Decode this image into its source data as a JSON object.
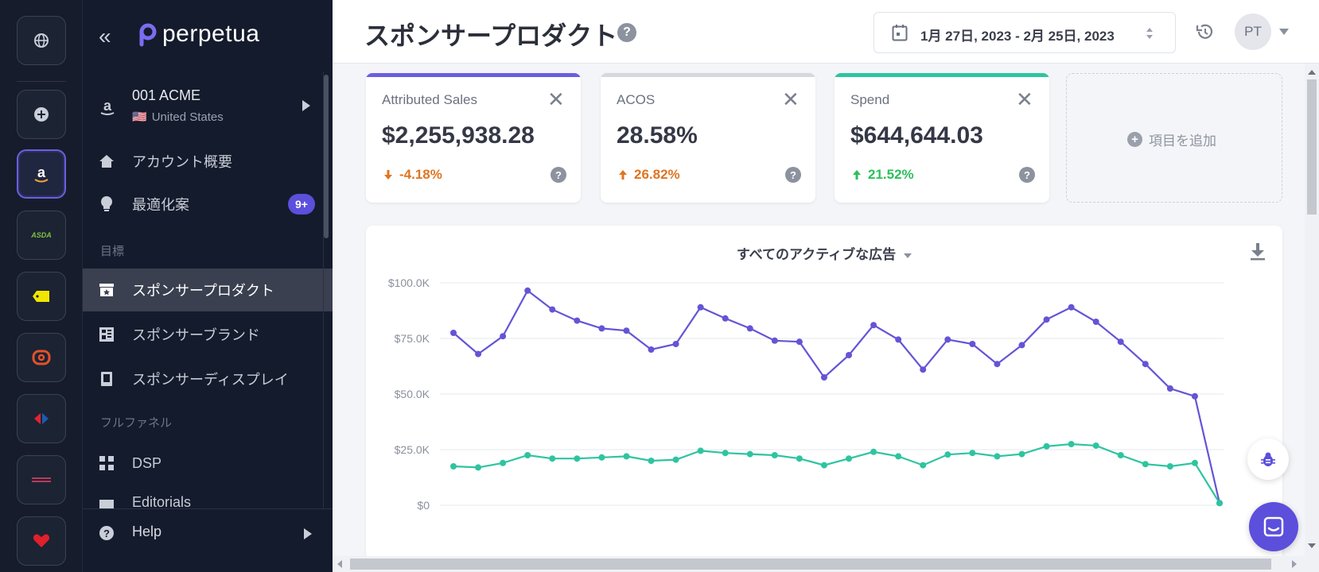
{
  "rail": {
    "items": [
      {
        "name": "globe-icon"
      },
      {
        "name": "add-icon"
      },
      {
        "name": "amazon-icon",
        "active": true
      },
      {
        "name": "asda-logo",
        "text": "ASDA"
      },
      {
        "name": "tag-icon"
      },
      {
        "name": "bol-logo"
      },
      {
        "name": "carrefour-logo"
      },
      {
        "name": "retailer-logo"
      },
      {
        "name": "heart-icon"
      }
    ]
  },
  "sidebar": {
    "logo_text": "perpetua",
    "account": {
      "name": "001 ACME",
      "flag": "🇺🇸",
      "country": "United States"
    },
    "items": [
      {
        "label": "アカウント概要"
      },
      {
        "label": "最適化案",
        "badge": "9+"
      }
    ],
    "section_goals": "目標",
    "goal_items": [
      {
        "label": "スポンサープロダクト",
        "active": true
      },
      {
        "label": "スポンサーブランド"
      },
      {
        "label": "スポンサーディスプレイ"
      }
    ],
    "section_fullfunnel": "フルファネル",
    "funnel_items": [
      {
        "label": "DSP"
      },
      {
        "label": "Editorials"
      }
    ],
    "help": "Help"
  },
  "header": {
    "title": "スポンサープロダクト",
    "help": "?",
    "date_range": "1月 27日, 2023 - 2月 25日, 2023",
    "avatar": "PT"
  },
  "metrics": [
    {
      "label": "Attributed Sales",
      "value": "$2,255,938.28",
      "change": "-4.18%",
      "direction": "down",
      "color": "#6b5fe0",
      "change_color": "#e0741f"
    },
    {
      "label": "ACOS",
      "value": "28.58%",
      "change": "26.82%",
      "direction": "up",
      "color": "#d5d8de",
      "change_color": "#e0741f"
    },
    {
      "label": "Spend",
      "value": "$644,644.03",
      "change": "21.52%",
      "direction": "up",
      "color": "#2ec4a0",
      "change_color": "#2bbf5c"
    }
  ],
  "add_metric": "項目を追加",
  "chart": {
    "title": "すべてのアクティブな広告"
  },
  "chart_data": {
    "type": "line",
    "ylim": [
      0,
      100000
    ],
    "yticks": [
      "$0",
      "$25.0K",
      "$50.0K",
      "$75.0K",
      "$100.0K"
    ],
    "series": [
      {
        "color": "#6454d6",
        "values": [
          77500,
          68000,
          76000,
          96500,
          88000,
          83000,
          79500,
          78500,
          70000,
          72500,
          89000,
          84000,
          79500,
          74000,
          73500,
          57500,
          67500,
          81000,
          74500,
          61000,
          74500,
          72500,
          63500,
          72000,
          83500,
          89000,
          82500,
          73500,
          63500,
          52500,
          49000,
          1000
        ]
      },
      {
        "color": "#2ec4a0",
        "values": [
          17500,
          17000,
          19000,
          22500,
          21000,
          21000,
          21500,
          22000,
          20000,
          20500,
          24500,
          23500,
          23000,
          22500,
          21000,
          18000,
          21000,
          24000,
          22000,
          18000,
          22800,
          23500,
          22000,
          23000,
          26500,
          27500,
          26800,
          22500,
          18500,
          17500,
          19000,
          1000
        ]
      }
    ]
  }
}
